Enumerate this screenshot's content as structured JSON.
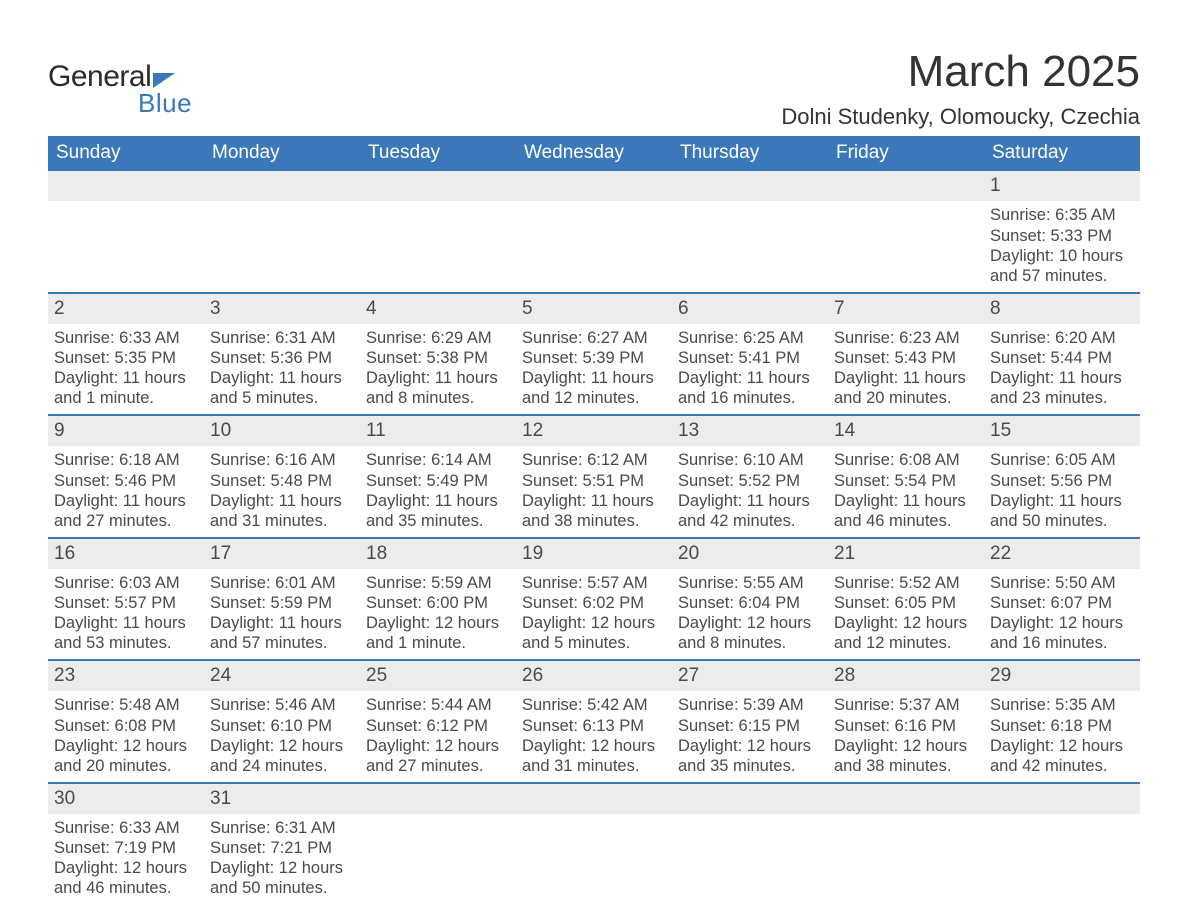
{
  "brand": {
    "text_general": "General",
    "text_blue": "Blue",
    "triangle_color": "#3a78b9"
  },
  "title": {
    "month": "March 2025",
    "location": "Dolni Studenky, Olomoucky, Czechia"
  },
  "colors": {
    "header_bg": "#3a78b9",
    "header_text": "#ffffff",
    "daynum_bg": "#ececec",
    "row_border": "#3a78b9",
    "body_text": "#4a4a4a",
    "page_bg": "#ffffff"
  },
  "typography": {
    "month_fontsize_pt": 33,
    "location_fontsize_pt": 17,
    "weekday_fontsize_pt": 14,
    "daynum_fontsize_pt": 14,
    "detail_fontsize_pt": 12
  },
  "weekdays": [
    "Sunday",
    "Monday",
    "Tuesday",
    "Wednesday",
    "Thursday",
    "Friday",
    "Saturday"
  ],
  "weeks": [
    [
      null,
      null,
      null,
      null,
      null,
      null,
      {
        "n": "1",
        "sunrise": "Sunrise: 6:35 AM",
        "sunset": "Sunset: 5:33 PM",
        "day1": "Daylight: 10 hours",
        "day2": "and 57 minutes."
      }
    ],
    [
      {
        "n": "2",
        "sunrise": "Sunrise: 6:33 AM",
        "sunset": "Sunset: 5:35 PM",
        "day1": "Daylight: 11 hours",
        "day2": "and 1 minute."
      },
      {
        "n": "3",
        "sunrise": "Sunrise: 6:31 AM",
        "sunset": "Sunset: 5:36 PM",
        "day1": "Daylight: 11 hours",
        "day2": "and 5 minutes."
      },
      {
        "n": "4",
        "sunrise": "Sunrise: 6:29 AM",
        "sunset": "Sunset: 5:38 PM",
        "day1": "Daylight: 11 hours",
        "day2": "and 8 minutes."
      },
      {
        "n": "5",
        "sunrise": "Sunrise: 6:27 AM",
        "sunset": "Sunset: 5:39 PM",
        "day1": "Daylight: 11 hours",
        "day2": "and 12 minutes."
      },
      {
        "n": "6",
        "sunrise": "Sunrise: 6:25 AM",
        "sunset": "Sunset: 5:41 PM",
        "day1": "Daylight: 11 hours",
        "day2": "and 16 minutes."
      },
      {
        "n": "7",
        "sunrise": "Sunrise: 6:23 AM",
        "sunset": "Sunset: 5:43 PM",
        "day1": "Daylight: 11 hours",
        "day2": "and 20 minutes."
      },
      {
        "n": "8",
        "sunrise": "Sunrise: 6:20 AM",
        "sunset": "Sunset: 5:44 PM",
        "day1": "Daylight: 11 hours",
        "day2": "and 23 minutes."
      }
    ],
    [
      {
        "n": "9",
        "sunrise": "Sunrise: 6:18 AM",
        "sunset": "Sunset: 5:46 PM",
        "day1": "Daylight: 11 hours",
        "day2": "and 27 minutes."
      },
      {
        "n": "10",
        "sunrise": "Sunrise: 6:16 AM",
        "sunset": "Sunset: 5:48 PM",
        "day1": "Daylight: 11 hours",
        "day2": "and 31 minutes."
      },
      {
        "n": "11",
        "sunrise": "Sunrise: 6:14 AM",
        "sunset": "Sunset: 5:49 PM",
        "day1": "Daylight: 11 hours",
        "day2": "and 35 minutes."
      },
      {
        "n": "12",
        "sunrise": "Sunrise: 6:12 AM",
        "sunset": "Sunset: 5:51 PM",
        "day1": "Daylight: 11 hours",
        "day2": "and 38 minutes."
      },
      {
        "n": "13",
        "sunrise": "Sunrise: 6:10 AM",
        "sunset": "Sunset: 5:52 PM",
        "day1": "Daylight: 11 hours",
        "day2": "and 42 minutes."
      },
      {
        "n": "14",
        "sunrise": "Sunrise: 6:08 AM",
        "sunset": "Sunset: 5:54 PM",
        "day1": "Daylight: 11 hours",
        "day2": "and 46 minutes."
      },
      {
        "n": "15",
        "sunrise": "Sunrise: 6:05 AM",
        "sunset": "Sunset: 5:56 PM",
        "day1": "Daylight: 11 hours",
        "day2": "and 50 minutes."
      }
    ],
    [
      {
        "n": "16",
        "sunrise": "Sunrise: 6:03 AM",
        "sunset": "Sunset: 5:57 PM",
        "day1": "Daylight: 11 hours",
        "day2": "and 53 minutes."
      },
      {
        "n": "17",
        "sunrise": "Sunrise: 6:01 AM",
        "sunset": "Sunset: 5:59 PM",
        "day1": "Daylight: 11 hours",
        "day2": "and 57 minutes."
      },
      {
        "n": "18",
        "sunrise": "Sunrise: 5:59 AM",
        "sunset": "Sunset: 6:00 PM",
        "day1": "Daylight: 12 hours",
        "day2": "and 1 minute."
      },
      {
        "n": "19",
        "sunrise": "Sunrise: 5:57 AM",
        "sunset": "Sunset: 6:02 PM",
        "day1": "Daylight: 12 hours",
        "day2": "and 5 minutes."
      },
      {
        "n": "20",
        "sunrise": "Sunrise: 5:55 AM",
        "sunset": "Sunset: 6:04 PM",
        "day1": "Daylight: 12 hours",
        "day2": "and 8 minutes."
      },
      {
        "n": "21",
        "sunrise": "Sunrise: 5:52 AM",
        "sunset": "Sunset: 6:05 PM",
        "day1": "Daylight: 12 hours",
        "day2": "and 12 minutes."
      },
      {
        "n": "22",
        "sunrise": "Sunrise: 5:50 AM",
        "sunset": "Sunset: 6:07 PM",
        "day1": "Daylight: 12 hours",
        "day2": "and 16 minutes."
      }
    ],
    [
      {
        "n": "23",
        "sunrise": "Sunrise: 5:48 AM",
        "sunset": "Sunset: 6:08 PM",
        "day1": "Daylight: 12 hours",
        "day2": "and 20 minutes."
      },
      {
        "n": "24",
        "sunrise": "Sunrise: 5:46 AM",
        "sunset": "Sunset: 6:10 PM",
        "day1": "Daylight: 12 hours",
        "day2": "and 24 minutes."
      },
      {
        "n": "25",
        "sunrise": "Sunrise: 5:44 AM",
        "sunset": "Sunset: 6:12 PM",
        "day1": "Daylight: 12 hours",
        "day2": "and 27 minutes."
      },
      {
        "n": "26",
        "sunrise": "Sunrise: 5:42 AM",
        "sunset": "Sunset: 6:13 PM",
        "day1": "Daylight: 12 hours",
        "day2": "and 31 minutes."
      },
      {
        "n": "27",
        "sunrise": "Sunrise: 5:39 AM",
        "sunset": "Sunset: 6:15 PM",
        "day1": "Daylight: 12 hours",
        "day2": "and 35 minutes."
      },
      {
        "n": "28",
        "sunrise": "Sunrise: 5:37 AM",
        "sunset": "Sunset: 6:16 PM",
        "day1": "Daylight: 12 hours",
        "day2": "and 38 minutes."
      },
      {
        "n": "29",
        "sunrise": "Sunrise: 5:35 AM",
        "sunset": "Sunset: 6:18 PM",
        "day1": "Daylight: 12 hours",
        "day2": "and 42 minutes."
      }
    ],
    [
      {
        "n": "30",
        "sunrise": "Sunrise: 6:33 AM",
        "sunset": "Sunset: 7:19 PM",
        "day1": "Daylight: 12 hours",
        "day2": "and 46 minutes."
      },
      {
        "n": "31",
        "sunrise": "Sunrise: 6:31 AM",
        "sunset": "Sunset: 7:21 PM",
        "day1": "Daylight: 12 hours",
        "day2": "and 50 minutes."
      },
      null,
      null,
      null,
      null,
      null
    ]
  ]
}
